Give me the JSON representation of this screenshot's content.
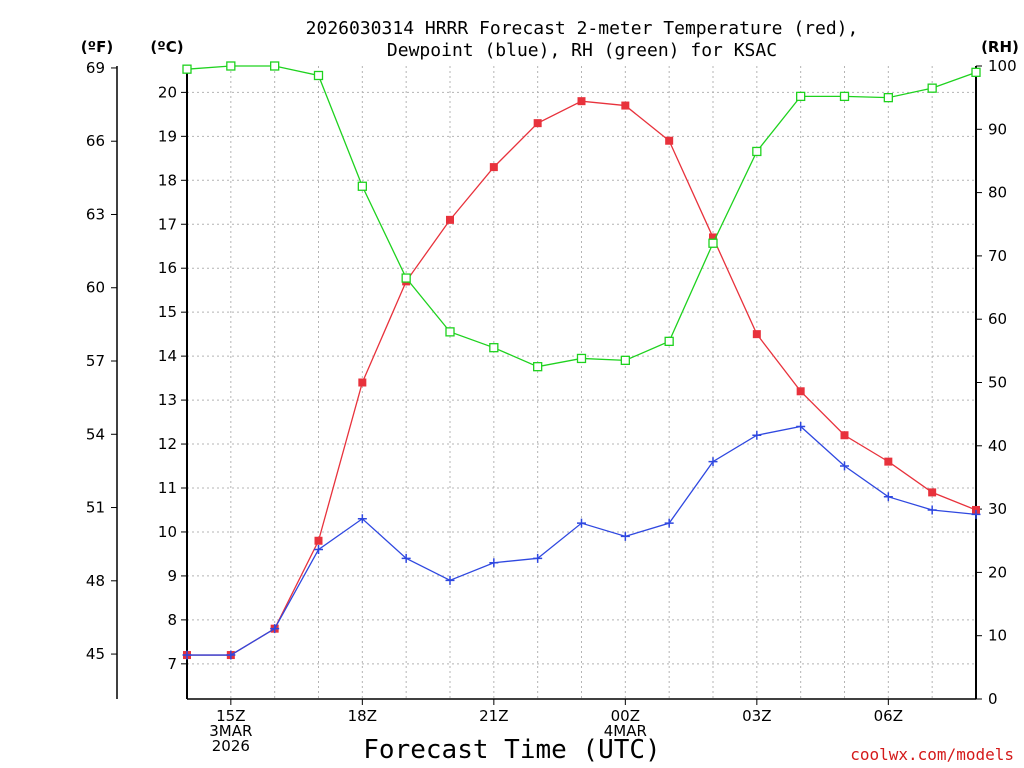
{
  "chart_data": {
    "type": "line",
    "title_lines": [
      "2026030314 HRRR Forecast 2-meter Temperature (red),",
      "Dewpoint (blue), RH (green) for KSAC"
    ],
    "xlabel": "Forecast Time (UTC)",
    "credit": "coolwx.com/models",
    "unit_labels": {
      "f": "(ºF)",
      "c": "(ºC)",
      "rh": "(RH)"
    },
    "x_hours": [
      0,
      1,
      2,
      3,
      4,
      5,
      6,
      7,
      8,
      9,
      10,
      11,
      12,
      13,
      14,
      15,
      16,
      17,
      18
    ],
    "xlim": [
      0,
      18
    ],
    "x_ticks": [
      {
        "h": 1,
        "lines": [
          "15Z",
          "3MAR",
          "2026"
        ]
      },
      {
        "h": 4,
        "lines": [
          "18Z"
        ]
      },
      {
        "h": 7,
        "lines": [
          "21Z"
        ]
      },
      {
        "h": 10,
        "lines": [
          "00Z",
          "4MAR"
        ]
      },
      {
        "h": 13,
        "lines": [
          "03Z"
        ]
      },
      {
        "h": 16,
        "lines": [
          "06Z"
        ]
      }
    ],
    "celsius_axis": {
      "ticks": [
        7,
        8,
        9,
        10,
        11,
        12,
        13,
        14,
        15,
        16,
        17,
        18,
        19,
        20
      ],
      "range": [
        6.2,
        20.6
      ]
    },
    "fahrenheit_ticks": [
      45,
      48,
      51,
      54,
      57,
      60,
      63,
      66,
      69
    ],
    "rh_axis": {
      "ticks": [
        0,
        10,
        20,
        30,
        40,
        50,
        60,
        70,
        80,
        90,
        100
      ],
      "range": [
        0,
        100
      ]
    },
    "series": [
      {
        "name": "Temperature",
        "unit": "C",
        "color": "#e8323c",
        "marker": "filled-square",
        "values": [
          7.2,
          7.2,
          7.8,
          9.8,
          13.4,
          15.7,
          17.1,
          18.3,
          19.3,
          19.8,
          19.7,
          18.9,
          16.7,
          14.5,
          13.2,
          12.2,
          11.6,
          10.9,
          10.5
        ]
      },
      {
        "name": "Dewpoint",
        "unit": "C",
        "color": "#2f48e0",
        "marker": "plus",
        "values": [
          7.2,
          7.2,
          7.8,
          9.6,
          10.3,
          9.4,
          8.9,
          9.3,
          9.4,
          10.2,
          9.9,
          10.2,
          11.6,
          12.2,
          12.4,
          11.5,
          10.8,
          10.5,
          10.4
        ]
      },
      {
        "name": "RH",
        "unit": "%",
        "color": "#1ed21e",
        "marker": "open-square",
        "values": [
          99.5,
          100,
          100,
          98.5,
          81,
          66.5,
          58,
          55.5,
          52.5,
          53.8,
          53.5,
          56.5,
          72,
          86.5,
          95.2,
          95.2,
          95,
          96.5,
          99
        ]
      }
    ]
  }
}
